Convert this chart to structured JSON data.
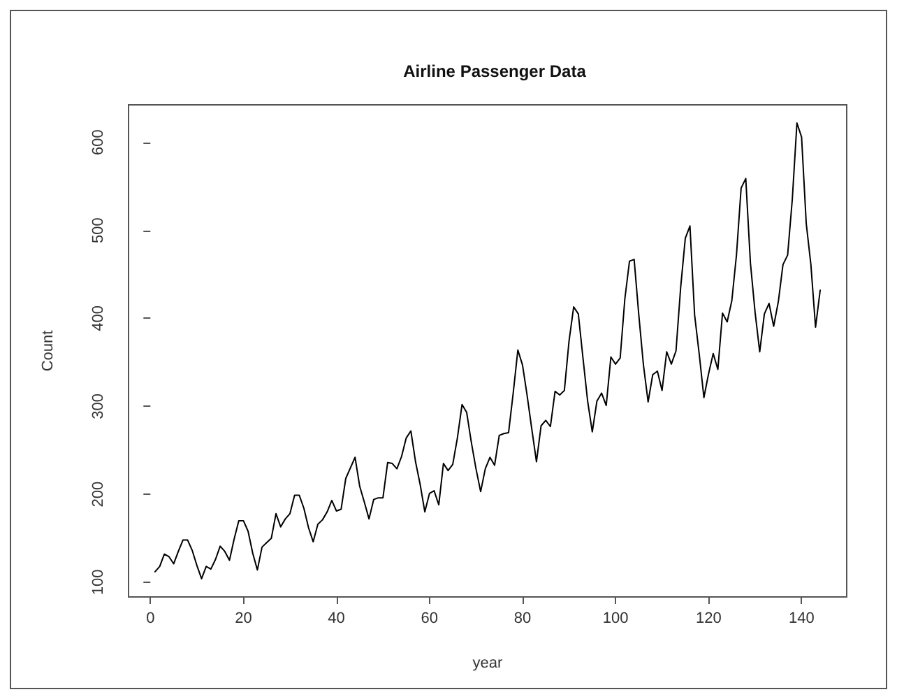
{
  "chart_data": {
    "type": "line",
    "title": "Airline Passenger Data",
    "xlabel": "year",
    "ylabel": "Count",
    "x": [
      1,
      2,
      3,
      4,
      5,
      6,
      7,
      8,
      9,
      10,
      11,
      12,
      13,
      14,
      15,
      16,
      17,
      18,
      19,
      20,
      21,
      22,
      23,
      24,
      25,
      26,
      27,
      28,
      29,
      30,
      31,
      32,
      33,
      34,
      35,
      36,
      37,
      38,
      39,
      40,
      41,
      42,
      43,
      44,
      45,
      46,
      47,
      48,
      49,
      50,
      51,
      52,
      53,
      54,
      55,
      56,
      57,
      58,
      59,
      60,
      61,
      62,
      63,
      64,
      65,
      66,
      67,
      68,
      69,
      70,
      71,
      72,
      73,
      74,
      75,
      76,
      77,
      78,
      79,
      80,
      81,
      82,
      83,
      84,
      85,
      86,
      87,
      88,
      89,
      90,
      91,
      92,
      93,
      94,
      95,
      96,
      97,
      98,
      99,
      100,
      101,
      102,
      103,
      104,
      105,
      106,
      107,
      108,
      109,
      110,
      111,
      112,
      113,
      114,
      115,
      116,
      117,
      118,
      119,
      120,
      121,
      122,
      123,
      124,
      125,
      126,
      127,
      128,
      129,
      130,
      131,
      132,
      133,
      134,
      135,
      136,
      137,
      138,
      139,
      140,
      141,
      142,
      143,
      144
    ],
    "series": [
      {
        "color": "#000000",
        "values": [
          112,
          118,
          132,
          129,
          121,
          135,
          148,
          148,
          136,
          119,
          104,
          118,
          115,
          126,
          141,
          135,
          125,
          149,
          170,
          170,
          158,
          133,
          114,
          140,
          145,
          150,
          178,
          163,
          172,
          178,
          199,
          199,
          184,
          162,
          146,
          166,
          171,
          180,
          193,
          181,
          183,
          218,
          230,
          242,
          209,
          191,
          172,
          194,
          196,
          196,
          236,
          235,
          229,
          243,
          264,
          272,
          237,
          211,
          180,
          201,
          204,
          188,
          235,
          227,
          234,
          264,
          302,
          293,
          259,
          229,
          203,
          229,
          242,
          233,
          267,
          269,
          270,
          315,
          364,
          347,
          312,
          274,
          237,
          278,
          284,
          277,
          317,
          313,
          318,
          374,
          413,
          405,
          355,
          306,
          271,
          306,
          315,
          301,
          356,
          348,
          355,
          422,
          465,
          467,
          404,
          347,
          305,
          336,
          340,
          318,
          362,
          348,
          363,
          435,
          491,
          505,
          404,
          359,
          310,
          337,
          360,
          342,
          406,
          396,
          420,
          472,
          548,
          559,
          463,
          407,
          362,
          405,
          417,
          391,
          419,
          461,
          472,
          535,
          622,
          606,
          508,
          461,
          390,
          432
        ]
      }
    ],
    "xlim": [
      -4.7,
      149.7
    ],
    "xticks": [
      0,
      20,
      40,
      60,
      80,
      100,
      120,
      140
    ],
    "ylim": [
      83.3,
      642.7
    ],
    "yticks": [
      100,
      200,
      300,
      400,
      500,
      600
    ],
    "grid": false,
    "marker": "none",
    "line_style": "solid"
  }
}
